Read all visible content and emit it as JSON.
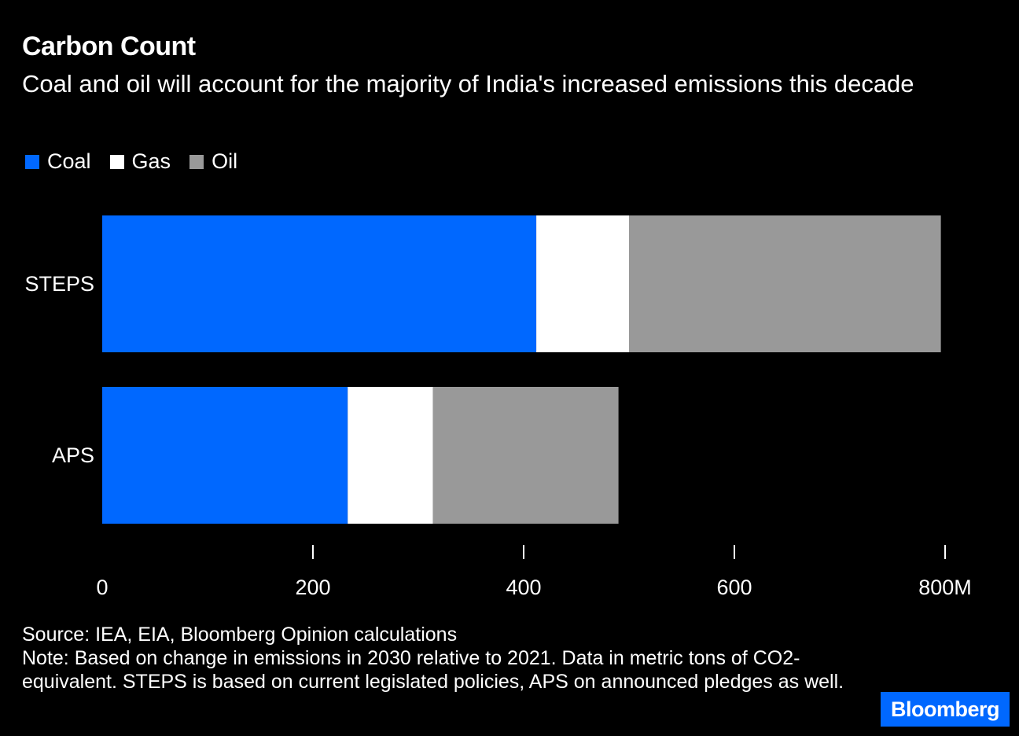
{
  "header": {
    "title": "Carbon Count",
    "subtitle": "Coal and oil will account for the majority of India's increased emissions this decade"
  },
  "legend": [
    {
      "label": "Coal",
      "color": "#0068FF"
    },
    {
      "label": "Gas",
      "color": "#FFFFFF"
    },
    {
      "label": "Oil",
      "color": "#999999"
    }
  ],
  "chart_data": {
    "type": "bar",
    "orientation": "horizontal",
    "stacked": true,
    "categories": [
      "STEPS",
      "APS"
    ],
    "series": [
      {
        "name": "Coal",
        "color": "#0068FF",
        "values": [
          412,
          233
        ]
      },
      {
        "name": "Gas",
        "color": "#FFFFFF",
        "values": [
          88,
          81
        ]
      },
      {
        "name": "Oil",
        "color": "#999999",
        "values": [
          296,
          176
        ]
      }
    ],
    "xlim": [
      0,
      800
    ],
    "xticks": [
      0,
      200,
      400,
      600,
      800
    ],
    "xtick_labels": [
      "0",
      "200",
      "400",
      "600",
      "800M"
    ],
    "title": "Carbon Count",
    "xlabel": "",
    "ylabel": ""
  },
  "footer": {
    "source": "Source: IEA, EIA, Bloomberg Opinion calculations",
    "note": "Note: Based on change in emissions in 2030 relative to 2021. Data in metric tons of CO2-equivalent. STEPS is based on current legislated policies, APS on announced pledges as well."
  },
  "brand": {
    "name": "Bloomberg",
    "color": "#0068FF"
  }
}
